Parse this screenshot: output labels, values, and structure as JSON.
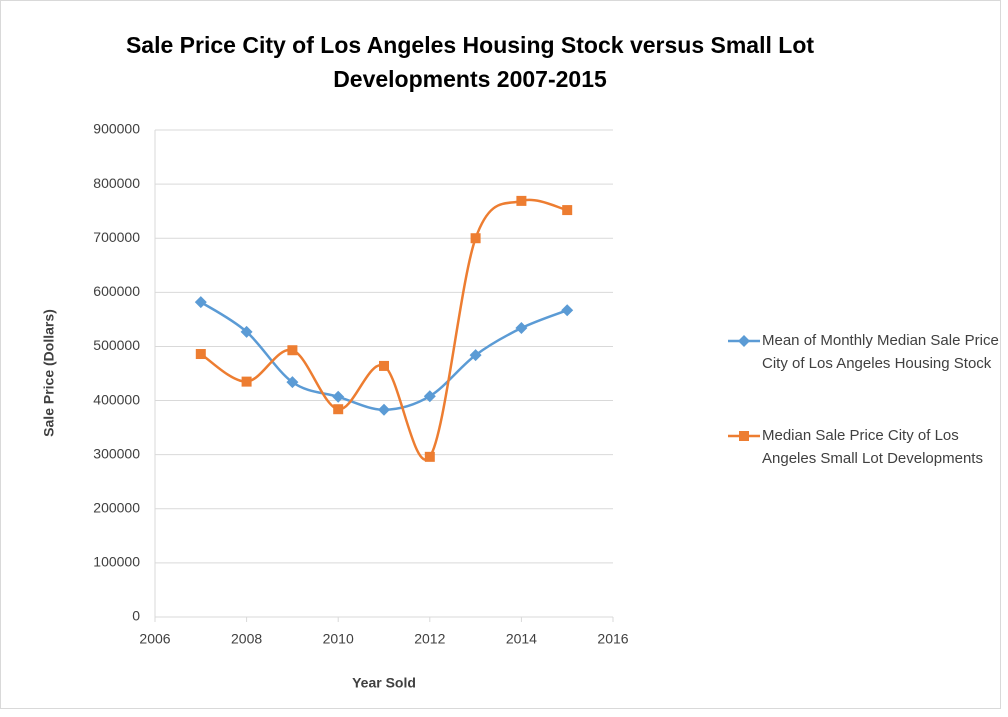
{
  "chart_data": {
    "type": "line",
    "title": "Sale Price City of Los Angeles Housing Stock versus Small Lot Developments 2007-2015",
    "x_label": "Year Sold",
    "y_label": "Sale Price (Dollars)",
    "x": [
      2007,
      2008,
      2009,
      2010,
      2011,
      2012,
      2013,
      2014,
      2015
    ],
    "series": [
      {
        "name": "Mean of Monthly Median Sale Price City of Los Angeles Housing Stock",
        "color": "#5b9bd5",
        "marker": "diamond",
        "values": [
          582000,
          527000,
          434000,
          407000,
          383000,
          408000,
          484000,
          534000,
          567000
        ]
      },
      {
        "name": "Median Sale Price City of Los Angeles Small Lot Developments",
        "color": "#ed7d31",
        "marker": "square",
        "values": [
          486000,
          435000,
          493000,
          384000,
          464000,
          296000,
          700000,
          769000,
          752000
        ]
      }
    ],
    "xlim": [
      2006,
      2016
    ],
    "xticks": [
      2006,
      2008,
      2010,
      2012,
      2014,
      2016
    ],
    "ylim": [
      0,
      900000
    ],
    "yticks": [
      0,
      100000,
      200000,
      300000,
      400000,
      500000,
      600000,
      700000,
      800000,
      900000
    ],
    "grid": true,
    "smooth": true,
    "legend": "right"
  }
}
